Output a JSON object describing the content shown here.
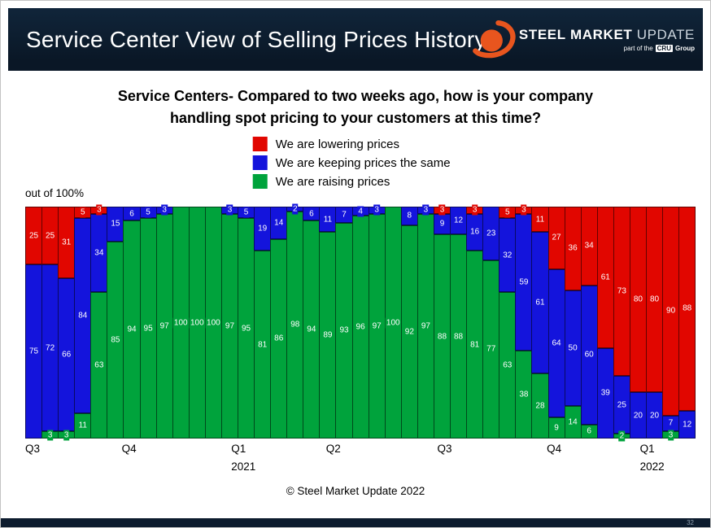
{
  "header": {
    "title": "Service Center View of Selling Prices History",
    "logo": {
      "steel": "STEEL",
      "market": "MARKET",
      "update": "UPDATE",
      "tagline_pre": "part of the",
      "tagline_badge": "CRU",
      "tagline_post": "Group"
    }
  },
  "question": {
    "prefix": "Service Centers-",
    "line1_rest": " Compared to two weeks ago, how is your company",
    "line2": "handling spot pricing to your customers at this time?"
  },
  "legend": [
    {
      "key": "lowering",
      "label": "We are lowering prices",
      "color": "#e10600"
    },
    {
      "key": "keeping",
      "label": "We are keeping prices the same",
      "color": "#1414dc"
    },
    {
      "key": "raising",
      "label": "We are raising prices",
      "color": "#00a33c"
    }
  ],
  "axis_note": "out of 100%",
  "copyright": "© Steel Market Update 2022",
  "page_number": "32",
  "chart_data": {
    "type": "bar",
    "stacked": true,
    "unit": "percent",
    "title": "Service Centers- Compared to two weeks ago, how is your company handling spot pricing to your customers at this time?",
    "xlabel": "",
    "ylabel": "out of 100%",
    "ylim": [
      0,
      100
    ],
    "grid": false,
    "legend_position": "top",
    "series": [
      {
        "key": "lowering",
        "name": "We are lowering prices",
        "color": "#e10600",
        "values": [
          25,
          25,
          31,
          5,
          3,
          0,
          0,
          0,
          0,
          0,
          0,
          0,
          0,
          0,
          0,
          0,
          0,
          0,
          0,
          0,
          0,
          0,
          0,
          0,
          0,
          3,
          0,
          3,
          0,
          5,
          3,
          11,
          27,
          36,
          34,
          61,
          73,
          80,
          80,
          90,
          88
        ]
      },
      {
        "key": "keeping",
        "name": "We are keeping prices the same",
        "color": "#1414dc",
        "values": [
          75,
          72,
          66,
          84,
          34,
          15,
          6,
          5,
          3,
          0,
          0,
          0,
          3,
          5,
          19,
          14,
          2,
          6,
          11,
          7,
          4,
          3,
          0,
          8,
          3,
          9,
          12,
          16,
          23,
          32,
          59,
          61,
          64,
          50,
          60,
          39,
          25,
          20,
          20,
          7,
          12
        ]
      },
      {
        "key": "raising",
        "name": "We are raising prices",
        "color": "#00a33c",
        "values": [
          0,
          3,
          3,
          11,
          63,
          85,
          94,
          95,
          97,
          100,
          100,
          100,
          97,
          95,
          81,
          86,
          98,
          94,
          89,
          93,
          96,
          97,
          100,
          92,
          97,
          88,
          88,
          81,
          77,
          63,
          38,
          28,
          9,
          14,
          6,
          0,
          2,
          0,
          0,
          3,
          0
        ]
      }
    ],
    "ticks": [
      {
        "label": "Q3",
        "year": "",
        "bar": 0
      },
      {
        "label": "Q4",
        "year": "",
        "bar": 5.9
      },
      {
        "label": "Q1",
        "year": "2021",
        "bar": 12.6
      },
      {
        "label": "Q2",
        "year": "",
        "bar": 18.4
      },
      {
        "label": "Q3",
        "year": "",
        "bar": 25.2
      },
      {
        "label": "Q4",
        "year": "",
        "bar": 31.9
      },
      {
        "label": "Q1",
        "year": "2022",
        "bar": 37.6
      }
    ]
  }
}
